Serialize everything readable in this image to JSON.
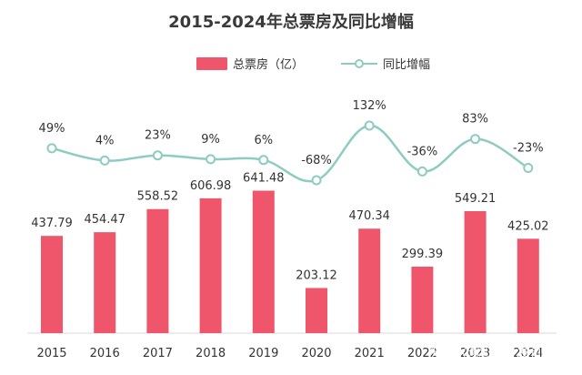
{
  "chart_data": {
    "type": "bar",
    "title": "2015-2024年总票房及同比增幅",
    "categories": [
      "2015",
      "2016",
      "2017",
      "2018",
      "2019",
      "2020",
      "2021",
      "2022",
      "2023",
      "2024"
    ],
    "series": [
      {
        "name": "总票房（亿）",
        "type": "bar",
        "values": [
          437.79,
          454.47,
          558.52,
          606.98,
          641.48,
          203.12,
          470.34,
          299.39,
          549.21,
          425.02
        ],
        "labels": [
          "437.79",
          "454.47",
          "558.52",
          "606.98",
          "641.48",
          "203.12",
          "470.34",
          "299.39",
          "549.21",
          "425.02"
        ]
      },
      {
        "name": "同比增幅",
        "type": "line",
        "values": [
          49,
          4,
          23,
          9,
          6,
          -68,
          132,
          -36,
          83,
          -23
        ],
        "labels": [
          "49%",
          "4%",
          "23%",
          "9%",
          "6%",
          "-68%",
          "132%",
          "-36%",
          "83%",
          "-23%"
        ]
      }
    ],
    "legend_position": "top-center",
    "grid": false,
    "colors": {
      "bar": "#f0566b",
      "line": "#8ecbc0",
      "text": "#333333",
      "axis": "#d8d8d8"
    }
  },
  "watermark": "知乎 @风起星发创作部"
}
